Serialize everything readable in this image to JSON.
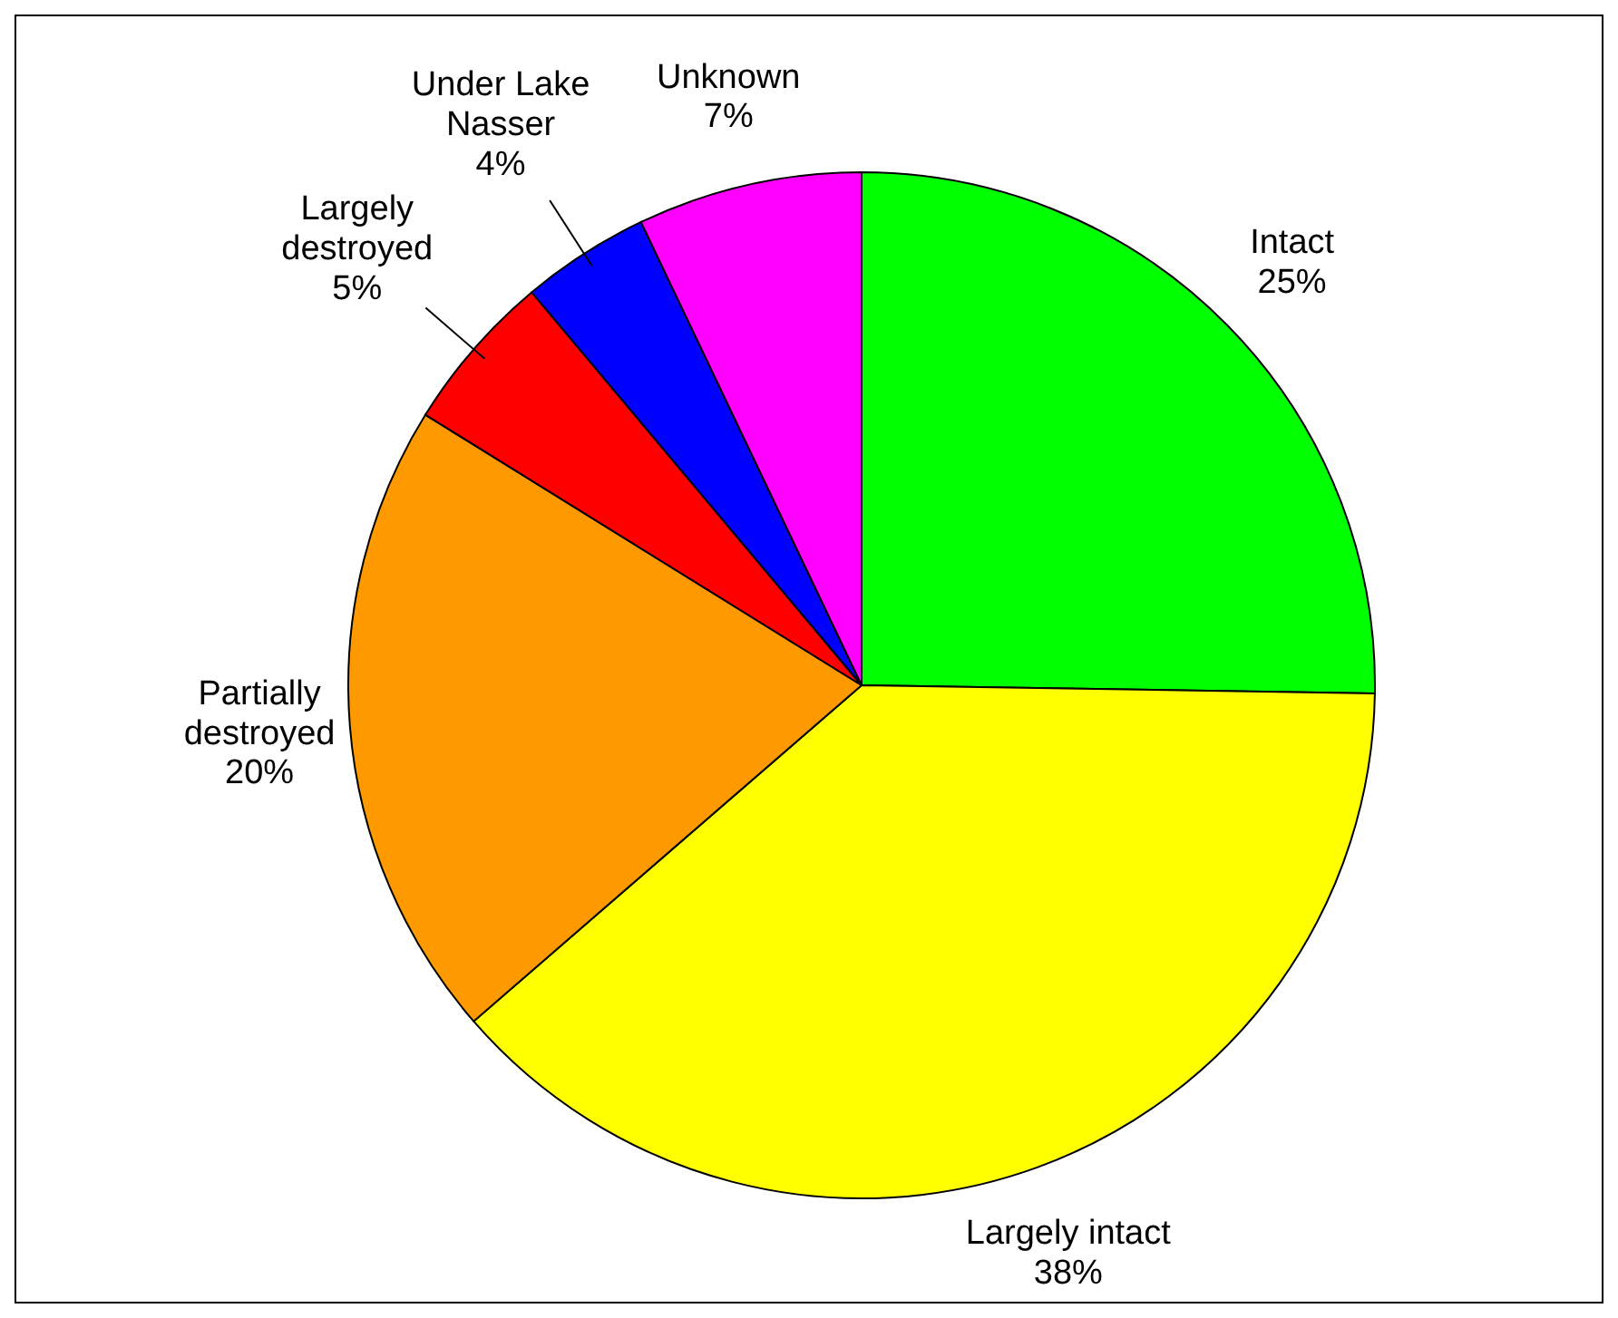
{
  "chart_data": {
    "type": "pie",
    "categories": [
      "Intact",
      "Largely intact",
      "Partially destroyed",
      "Largely destroyed",
      "Under Lake Nasser",
      "Unknown"
    ],
    "values": [
      25,
      38,
      20,
      5,
      4,
      7
    ],
    "colors": [
      "#00ff00",
      "#ffff00",
      "#ff9900",
      "#ff0000",
      "#0000ff",
      "#ff00ff"
    ],
    "value_labels": [
      "25%",
      "38%",
      "20%",
      "5%",
      "4%",
      "7%"
    ]
  }
}
